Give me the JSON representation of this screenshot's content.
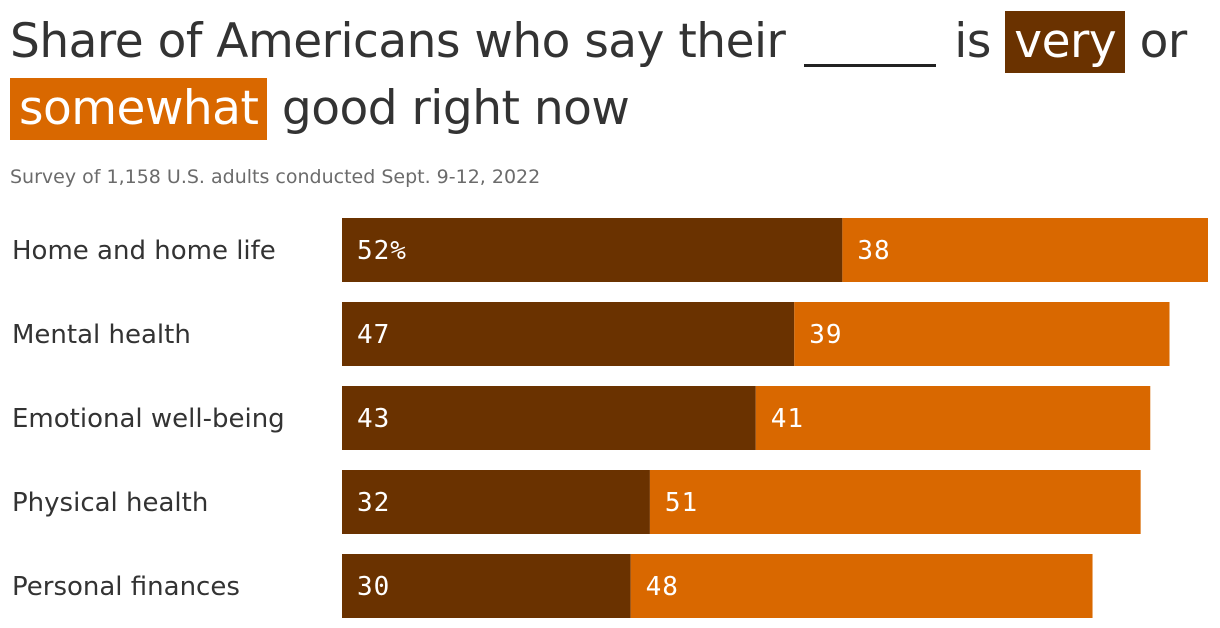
{
  "title": {
    "part1": "Share of Americans who say their",
    "part2": "is",
    "highlight_very": "very",
    "part3": "or",
    "highlight_somewhat": "somewhat",
    "part4": "good right now"
  },
  "subtitle": "Survey of 1,158 U.S. adults conducted Sept. 9-12, 2022",
  "colors": {
    "very": "#6a3200",
    "somewhat": "#d96800"
  },
  "chart_data": {
    "type": "bar",
    "orientation": "horizontal",
    "stacked": true,
    "categories": [
      "Home and home life",
      "Mental health",
      "Emotional well-being",
      "Physical health",
      "Personal finances"
    ],
    "series": [
      {
        "name": "very",
        "values": [
          52,
          47,
          43,
          32,
          30
        ],
        "labels": [
          "52%",
          "47",
          "43",
          "32",
          "30"
        ]
      },
      {
        "name": "somewhat",
        "values": [
          38,
          39,
          41,
          51,
          48
        ],
        "labels": [
          "38",
          "39",
          "41",
          "51",
          "48"
        ]
      }
    ],
    "xlim": [
      0,
      90
    ],
    "grid": false,
    "legend": "none"
  }
}
